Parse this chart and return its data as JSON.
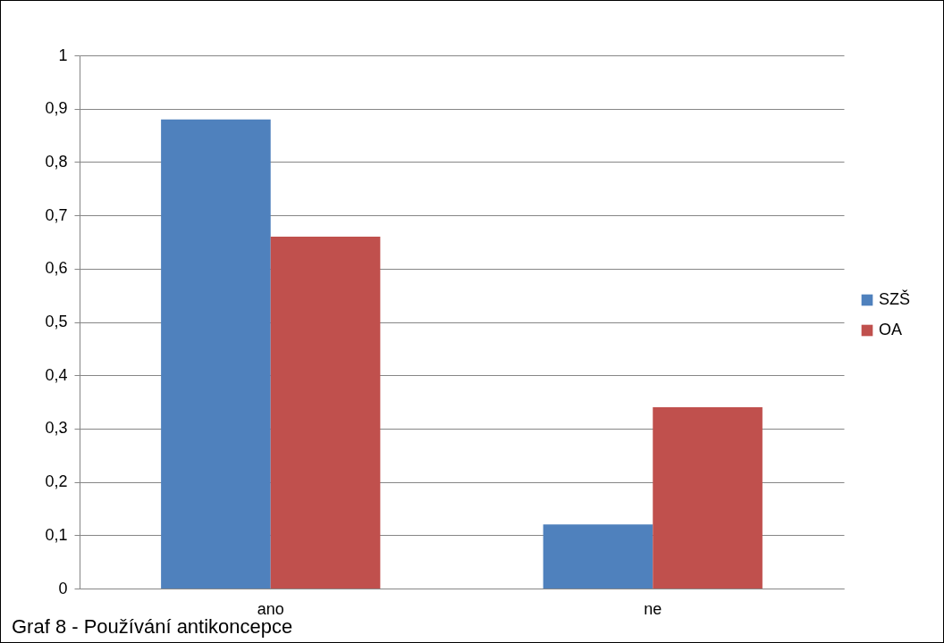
{
  "chart_data": {
    "type": "bar",
    "categories": [
      "ano",
      "ne"
    ],
    "series": [
      {
        "name": "SZŠ",
        "color": "#4f81bd",
        "values": [
          0.88,
          0.12
        ]
      },
      {
        "name": "OA",
        "color": "#c0504d",
        "values": [
          0.66,
          0.34
        ]
      }
    ],
    "ylim": [
      0,
      1
    ],
    "yticks": [
      0,
      {
        "value": 0.1,
        "label": "0,1"
      },
      {
        "value": 0.2,
        "label": "0,2"
      },
      {
        "value": 0.3,
        "label": "0,3"
      },
      {
        "value": 0.4,
        "label": "0,4"
      },
      {
        "value": 0.5,
        "label": "0,5"
      },
      {
        "value": 0.6,
        "label": "0,6"
      },
      {
        "value": 0.7,
        "label": "0,7"
      },
      {
        "value": 0.8,
        "label": "0,8"
      },
      {
        "value": 0.9,
        "label": "0,9"
      },
      1
    ],
    "grid": "y",
    "legend": "right",
    "annotations": [
      "Graf 8 - Používání antikoncepce"
    ]
  }
}
